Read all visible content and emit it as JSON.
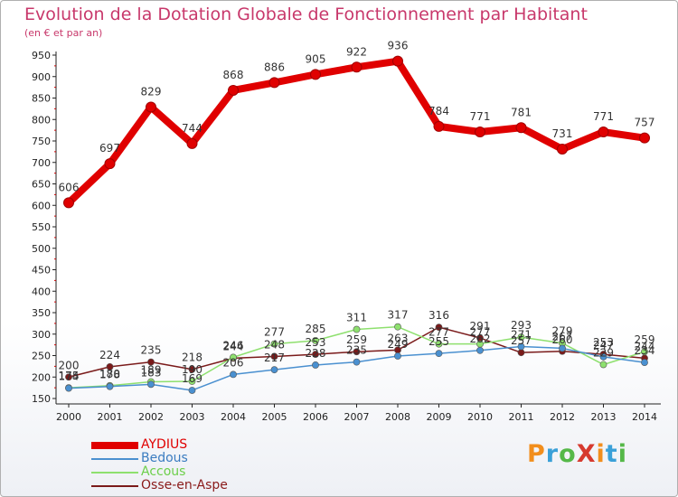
{
  "title": "Evolution de la Dotation Globale de Fonctionnement par Habitant",
  "subtitle": "(en € et par an)",
  "logo": {
    "text": "ProXiti",
    "letter_colors": [
      "#f28e1c",
      "#3aa0d8",
      "#55b848",
      "#d63a2f",
      "#f28e1c",
      "#3aa0d8",
      "#55b848"
    ]
  },
  "chart_data": {
    "type": "line",
    "x": [
      "2000",
      "2001",
      "2002",
      "2003",
      "2004",
      "2005",
      "2006",
      "2007",
      "2008",
      "2009",
      "2010",
      "2011",
      "2012",
      "2013",
      "2014"
    ],
    "ylim": [
      150,
      950
    ],
    "yticks": [
      150,
      200,
      250,
      300,
      350,
      400,
      450,
      500,
      550,
      600,
      650,
      700,
      750,
      800,
      850,
      900,
      950
    ],
    "grid": false,
    "legend_position": "bottom-left",
    "series": [
      {
        "name": "AYDIUS",
        "color": "#e00000",
        "values": [
          606,
          697,
          829,
          744,
          868,
          886,
          905,
          922,
          936,
          784,
          771,
          781,
          731,
          771,
          757
        ]
      },
      {
        "name": "Bedous",
        "color": "#4a90d0",
        "values": [
          174,
          178,
          183,
          169,
          206,
          217,
          228,
          235,
          249,
          255,
          262,
          271,
          267,
          247,
          234
        ]
      },
      {
        "name": "Accous",
        "color": "#8ee06e",
        "values": [
          175,
          180,
          189,
          190,
          246,
          277,
          285,
          311,
          317,
          277,
          277,
          293,
          279,
          229,
          259
        ]
      },
      {
        "name": "Osse-en-Aspe",
        "color": "#7a1a1a",
        "values": [
          200,
          224,
          235,
          218,
          244,
          248,
          253,
          259,
          263,
          316,
          291,
          257,
          260,
          253,
          244
        ]
      }
    ]
  }
}
